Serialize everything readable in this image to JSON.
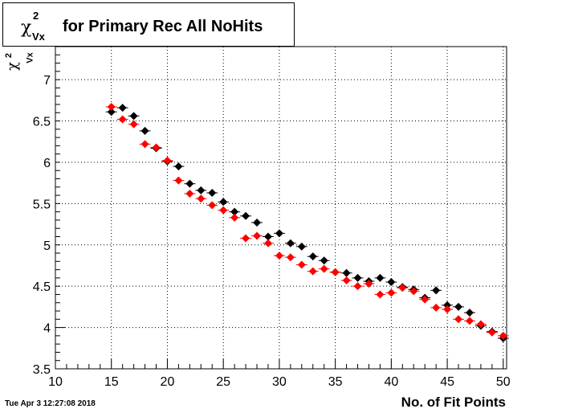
{
  "title": {
    "symbol": "χ",
    "superscript": "2",
    "subscript": "Vx",
    "text": "for Primary Rec All NoHits"
  },
  "ylabel": {
    "symbol": "χ",
    "superscript": "2",
    "subscript": "Vx"
  },
  "xlabel": "No. of Fit Points",
  "timestamp": "Tue Apr  3 12:27:08 2018",
  "colors": {
    "series_black": "#000000",
    "series_red": "#ff0000",
    "grid": "#000000"
  },
  "chart_data": {
    "type": "scatter",
    "xlim": [
      10,
      50.3
    ],
    "ylim": [
      3.5,
      7.4
    ],
    "xticks": [
      10,
      15,
      20,
      25,
      30,
      35,
      40,
      45,
      50
    ],
    "yticks": [
      3.5,
      4,
      4.5,
      5,
      5.5,
      6,
      6.5,
      7
    ],
    "ytick_labels": [
      "3.5",
      "4",
      "4.5",
      "5",
      "5.5",
      "6",
      "6.5",
      "7"
    ],
    "grid": true,
    "series": [
      {
        "color": "#000000",
        "x": [
          15,
          16,
          17,
          18,
          19,
          20,
          21,
          22,
          23,
          24,
          25,
          26,
          27,
          28,
          29,
          30,
          31,
          32,
          33,
          34,
          35,
          36,
          37,
          38,
          39,
          40,
          41,
          42,
          43,
          44,
          45,
          46,
          47,
          48,
          49,
          50
        ],
        "y": [
          6.61,
          6.66,
          6.56,
          6.38,
          6.17,
          6.01,
          5.95,
          5.74,
          5.66,
          5.63,
          5.52,
          5.4,
          5.35,
          5.27,
          5.1,
          5.14,
          5.02,
          4.98,
          4.86,
          4.81,
          4.67,
          4.66,
          4.6,
          4.56,
          4.6,
          4.55,
          4.49,
          4.46,
          4.36,
          4.45,
          4.27,
          4.25,
          4.18,
          4.02,
          3.95,
          3.87
        ]
      },
      {
        "color": "#ff0000",
        "x": [
          15,
          16,
          17,
          18,
          19,
          20,
          21,
          22,
          23,
          24,
          25,
          26,
          27,
          28,
          29,
          30,
          31,
          32,
          33,
          34,
          35,
          36,
          37,
          38,
          39,
          40,
          41,
          42,
          43,
          44,
          45,
          46,
          47,
          48,
          49,
          50
        ],
        "y": [
          6.67,
          6.52,
          6.46,
          6.22,
          6.18,
          6.02,
          5.78,
          5.62,
          5.56,
          5.48,
          5.42,
          5.33,
          5.08,
          5.11,
          5.02,
          4.87,
          4.85,
          4.76,
          4.68,
          4.71,
          4.67,
          4.57,
          4.5,
          4.53,
          4.4,
          4.42,
          4.48,
          4.44,
          4.34,
          4.24,
          4.22,
          4.1,
          4.08,
          4.04,
          3.94,
          3.9
        ]
      }
    ]
  }
}
